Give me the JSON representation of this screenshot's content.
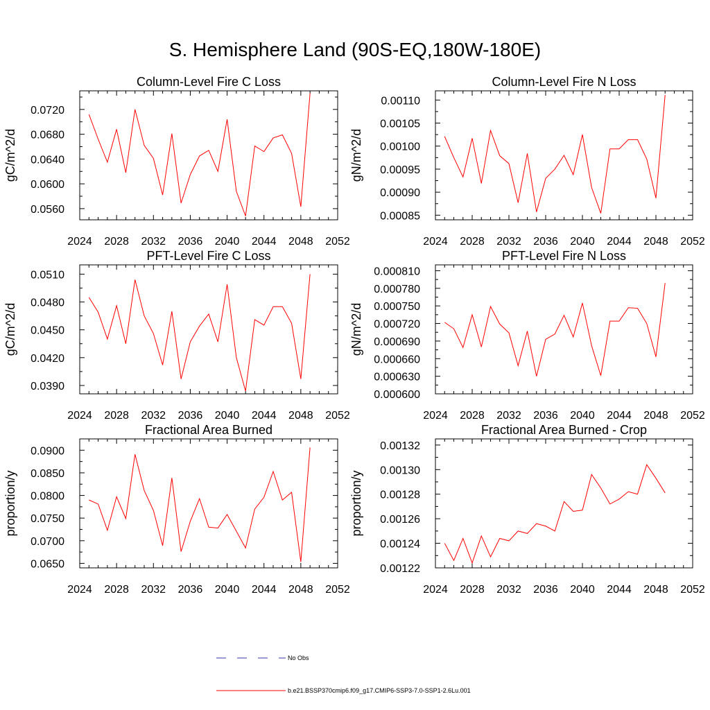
{
  "title": "S. Hemisphere Land (90S-EQ,180W-180E)",
  "legend": {
    "entries": [
      {
        "label": "No Obs",
        "color": "#3333aa",
        "style": "dashed"
      },
      {
        "label": "b.e21.BSSP370cmip6.f09_g17.CMIP6-SSP3-7.0-SSP1-2.6Lu.001",
        "color": "#ff0000",
        "style": "solid"
      }
    ]
  },
  "chart_data": [
    {
      "type": "line",
      "title": "Column-Level Fire C Loss",
      "ylabel": "gC/m^2/d",
      "xlim": [
        2024,
        2052
      ],
      "ylim": [
        0.0542,
        0.075
      ],
      "xticks": [
        "2024",
        "2028",
        "2032",
        "2036",
        "2040",
        "2044",
        "2048",
        "2052"
      ],
      "yticks": [
        0.056,
        0.06,
        0.064,
        0.068,
        0.072
      ],
      "yticklabels": [
        "0.0560",
        "0.0600",
        "0.0640",
        "0.0680",
        "0.0720"
      ],
      "series": [
        {
          "color": "#ff0000",
          "x": [
            2025,
            2026,
            2027,
            2028,
            2029,
            2030,
            2031,
            2032,
            2033,
            2034,
            2035,
            2036,
            2037,
            2038,
            2039,
            2040,
            2041,
            2042,
            2043,
            2044,
            2045,
            2046,
            2047,
            2048,
            2049
          ],
          "values": [
            0.0712,
            0.0672,
            0.0635,
            0.0688,
            0.0618,
            0.072,
            0.0662,
            0.0641,
            0.0582,
            0.0681,
            0.0569,
            0.0615,
            0.0645,
            0.0654,
            0.062,
            0.0704,
            0.0588,
            0.0548,
            0.0661,
            0.0652,
            0.0674,
            0.0679,
            0.0649,
            0.0563,
            0.0746
          ]
        }
      ]
    },
    {
      "type": "line",
      "title": "Column-Level Fire N Loss",
      "ylabel": "gN/m^2/d",
      "xlim": [
        2024,
        2052
      ],
      "ylim": [
        0.00084,
        0.00112
      ],
      "xticks": [
        "2024",
        "2028",
        "2032",
        "2036",
        "2040",
        "2044",
        "2048",
        "2052"
      ],
      "yticks": [
        0.00085,
        0.0009,
        0.00095,
        0.001,
        0.00105,
        0.0011
      ],
      "yticklabels": [
        "0.00085",
        "0.00090",
        "0.00095",
        "0.00100",
        "0.00105",
        "0.00110"
      ],
      "series": [
        {
          "color": "#ff0000",
          "x": [
            2025,
            2026,
            2027,
            2028,
            2029,
            2030,
            2031,
            2032,
            2033,
            2034,
            2035,
            2036,
            2037,
            2038,
            2039,
            2040,
            2041,
            2042,
            2043,
            2044,
            2045,
            2046,
            2047,
            2048,
            2049
          ],
          "values": [
            0.001021,
            0.000975,
            0.000933,
            0.001017,
            0.000919,
            0.001034,
            0.000979,
            0.000962,
            0.000877,
            0.000984,
            0.000857,
            0.00093,
            0.00095,
            0.00098,
            0.000938,
            0.001025,
            0.00091,
            0.000854,
            0.000994,
            0.000994,
            0.001014,
            0.001014,
            0.000972,
            0.000887,
            0.001111
          ]
        }
      ]
    },
    {
      "type": "line",
      "title": "PFT-Level Fire C Loss",
      "ylabel": "gC/m^2/d",
      "xlim": [
        2024,
        2052
      ],
      "ylim": [
        0.0381,
        0.052
      ],
      "xticks": [
        "2024",
        "2028",
        "2032",
        "2036",
        "2040",
        "2044",
        "2048",
        "2052"
      ],
      "yticks": [
        0.039,
        0.042,
        0.045,
        0.048,
        0.051
      ],
      "yticklabels": [
        "0.0390",
        "0.0420",
        "0.0450",
        "0.0480",
        "0.0510"
      ],
      "series": [
        {
          "color": "#ff0000",
          "x": [
            2025,
            2026,
            2027,
            2028,
            2029,
            2030,
            2031,
            2032,
            2033,
            2034,
            2035,
            2036,
            2037,
            2038,
            2039,
            2040,
            2041,
            2042,
            2043,
            2044,
            2045,
            2046,
            2047,
            2048,
            2049
          ],
          "values": [
            0.0485,
            0.0469,
            0.044,
            0.0476,
            0.0435,
            0.0504,
            0.0465,
            0.0446,
            0.0412,
            0.047,
            0.0397,
            0.0437,
            0.0454,
            0.0467,
            0.0437,
            0.0499,
            0.042,
            0.0384,
            0.0461,
            0.0455,
            0.0475,
            0.0475,
            0.0457,
            0.0397,
            0.051
          ]
        }
      ]
    },
    {
      "type": "line",
      "title": "PFT-Level Fire N Loss",
      "ylabel": "gN/m^2/d",
      "xlim": [
        2024,
        2052
      ],
      "ylim": [
        0.0006,
        0.00082
      ],
      "xticks": [
        "2024",
        "2028",
        "2032",
        "2036",
        "2040",
        "2044",
        "2048",
        "2052"
      ],
      "yticks": [
        0.0006,
        0.00063,
        0.00066,
        0.00069,
        0.00072,
        0.00075,
        0.00078,
        0.00081
      ],
      "yticklabels": [
        "0.000600",
        "0.000630",
        "0.000660",
        "0.000690",
        "0.000720",
        "0.000750",
        "0.000780",
        "0.000810"
      ],
      "series": [
        {
          "color": "#ff0000",
          "x": [
            2025,
            2026,
            2027,
            2028,
            2029,
            2030,
            2031,
            2032,
            2033,
            2034,
            2035,
            2036,
            2037,
            2038,
            2039,
            2040,
            2041,
            2042,
            2043,
            2044,
            2045,
            2046,
            2047,
            2048,
            2049
          ],
          "values": [
            0.000722,
            0.000711,
            0.000679,
            0.000735,
            0.00068,
            0.000749,
            0.000719,
            0.000704,
            0.000648,
            0.000707,
            0.00063,
            0.000693,
            0.000702,
            0.000734,
            0.000697,
            0.000755,
            0.000682,
            0.000631,
            0.000724,
            0.000724,
            0.000747,
            0.000746,
            0.00072,
            0.000663,
            0.000789
          ]
        }
      ]
    },
    {
      "type": "line",
      "title": "Fractional Area Burned",
      "ylabel": "proportion/y",
      "xlim": [
        2024,
        2052
      ],
      "ylim": [
        0.064,
        0.0925
      ],
      "xticks": [
        "2024",
        "2028",
        "2032",
        "2036",
        "2040",
        "2044",
        "2048",
        "2052"
      ],
      "yticks": [
        0.065,
        0.07,
        0.075,
        0.08,
        0.085,
        0.09
      ],
      "yticklabels": [
        "0.0650",
        "0.0700",
        "0.0750",
        "0.0800",
        "0.0850",
        "0.0900"
      ],
      "series": [
        {
          "color": "#ff0000",
          "x": [
            2025,
            2026,
            2027,
            2028,
            2029,
            2030,
            2031,
            2032,
            2033,
            2034,
            2035,
            2036,
            2037,
            2038,
            2039,
            2040,
            2041,
            2042,
            2043,
            2044,
            2045,
            2046,
            2047,
            2048,
            2049
          ],
          "values": [
            0.079,
            0.0781,
            0.0723,
            0.0797,
            0.0749,
            0.0891,
            0.0811,
            0.0767,
            0.0689,
            0.0839,
            0.0676,
            0.0743,
            0.0793,
            0.073,
            0.0728,
            0.0758,
            0.0721,
            0.0684,
            0.077,
            0.0796,
            0.0853,
            0.079,
            0.0807,
            0.0653,
            0.0906
          ]
        }
      ]
    },
    {
      "type": "line",
      "title": "Fractional Area Burned - Crop",
      "ylabel": "proportion/y",
      "xlim": [
        2024,
        2052
      ],
      "ylim": [
        0.00122,
        0.001325
      ],
      "xticks": [
        "2024",
        "2028",
        "2032",
        "2036",
        "2040",
        "2044",
        "2048",
        "2052"
      ],
      "yticks": [
        0.00122,
        0.00124,
        0.00126,
        0.00128,
        0.0013,
        0.00132
      ],
      "yticklabels": [
        "0.00122",
        "0.00124",
        "0.00126",
        "0.00128",
        "0.00130",
        "0.00132"
      ],
      "series": [
        {
          "color": "#ff0000",
          "x": [
            2025,
            2026,
            2027,
            2028,
            2029,
            2030,
            2031,
            2032,
            2033,
            2034,
            2035,
            2036,
            2037,
            2038,
            2039,
            2040,
            2041,
            2042,
            2043,
            2044,
            2045,
            2046,
            2047,
            2048,
            2049
          ],
          "values": [
            0.00124,
            0.001226,
            0.001244,
            0.001224,
            0.001246,
            0.001229,
            0.001244,
            0.001242,
            0.00125,
            0.001248,
            0.001256,
            0.001254,
            0.00125,
            0.001274,
            0.001266,
            0.001267,
            0.001296,
            0.001285,
            0.001272,
            0.001276,
            0.001282,
            0.00128,
            0.001304,
            0.001293,
            0.001281
          ]
        }
      ]
    }
  ]
}
